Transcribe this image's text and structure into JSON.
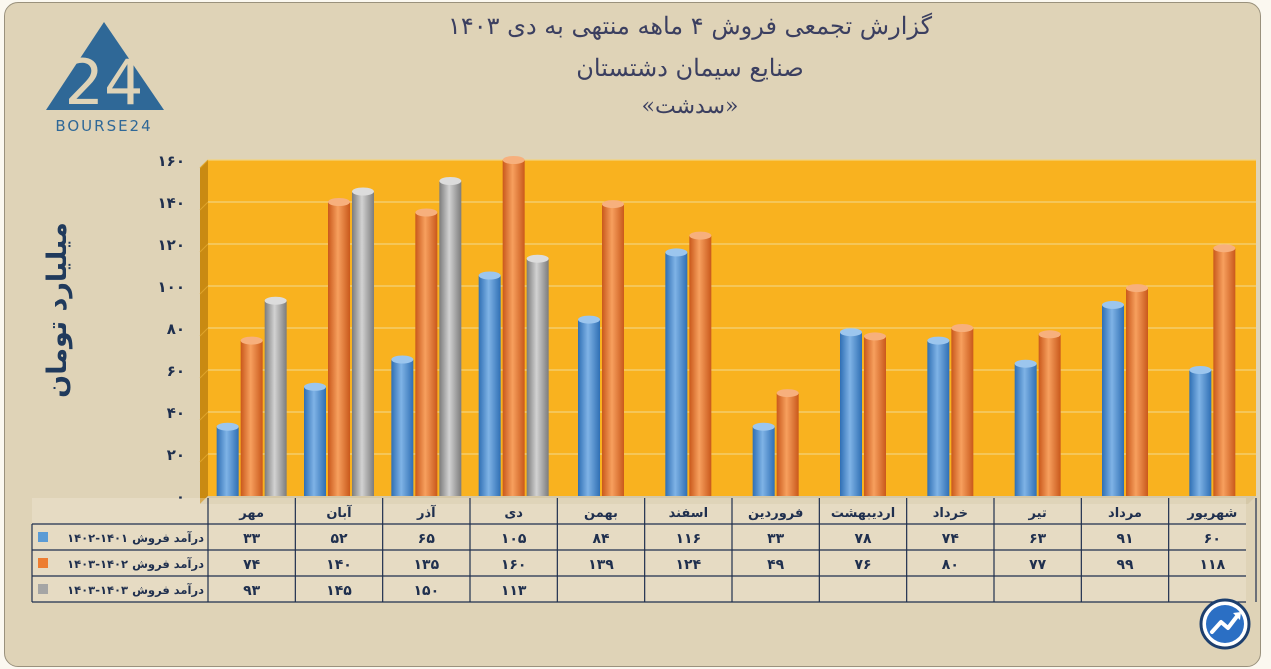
{
  "title_line1": "گزارش تجمعی فروش ۴ ماهه منتهی به دی ۱۴۰۳",
  "title_line2": "صنایع سیمان دشتستان",
  "title_line3": "«سدشت»",
  "logo_text": "BOURSE24",
  "logo_mark": "24",
  "colors": {
    "blue": "#5b9bd5",
    "orange": "#ed7d31",
    "gray": "#a5a5a5",
    "plot_bg": "#f9b21f"
  },
  "chart_data": {
    "type": "bar",
    "ylabel": "میلیارد تومان",
    "ylim": [
      0,
      160
    ],
    "yticks": [
      "۰",
      "۲۰",
      "۴۰",
      "۶۰",
      "۸۰",
      "۱۰۰",
      "۱۲۰",
      "۱۴۰",
      "۱۶۰"
    ],
    "categories": [
      "مهر",
      "آبان",
      "آذر",
      "دی",
      "بهمن",
      "اسفند",
      "فروردین",
      "اردیبهشت",
      "خرداد",
      "تیر",
      "مرداد",
      "شهریور"
    ],
    "series": [
      {
        "name": "درآمد فروش ۱۴۰۱-۱۴۰۲",
        "values": [
          33,
          52,
          65,
          105,
          84,
          116,
          33,
          78,
          74,
          63,
          91,
          60
        ],
        "labels": [
          "۳۳",
          "۵۲",
          "۶۵",
          "۱۰۵",
          "۸۴",
          "۱۱۶",
          "۳۳",
          "۷۸",
          "۷۴",
          "۶۳",
          "۹۱",
          "۶۰"
        ]
      },
      {
        "name": "درآمد فروش ۱۴۰۲-۱۴۰۳",
        "values": [
          74,
          140,
          135,
          160,
          139,
          124,
          49,
          76,
          80,
          77,
          99,
          118
        ],
        "labels": [
          "۷۴",
          "۱۴۰",
          "۱۳۵",
          "۱۶۰",
          "۱۳۹",
          "۱۲۴",
          "۴۹",
          "۷۶",
          "۸۰",
          "۷۷",
          "۹۹",
          "۱۱۸"
        ]
      },
      {
        "name": "درآمد فروش ۱۴۰۳-۱۴۰۳",
        "values": [
          93,
          145,
          150,
          113,
          null,
          null,
          null,
          null,
          null,
          null,
          null,
          null
        ],
        "labels": [
          "۹۳",
          "۱۴۵",
          "۱۵۰",
          "۱۱۳",
          "",
          "",
          "",
          "",
          "",
          "",
          "",
          ""
        ]
      }
    ]
  }
}
